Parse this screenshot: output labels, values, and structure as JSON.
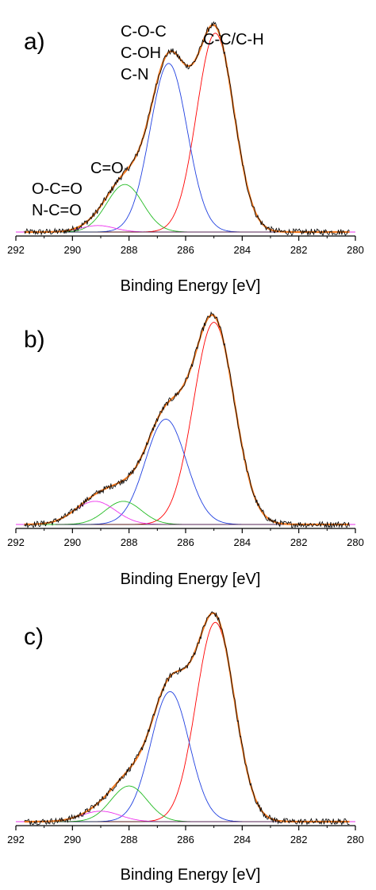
{
  "chart_data": [
    {
      "type": "line",
      "panel_label": "a)",
      "xlabel": "Binding Energy [eV]",
      "ylabel": "",
      "xlim": [
        292,
        280
      ],
      "x_reversed": true,
      "x_ticks": [
        292,
        290,
        288,
        286,
        284,
        282,
        280
      ],
      "grid": false,
      "annotations": [
        {
          "lines": [
            "C-O-C",
            "C-OH",
            "C-N"
          ],
          "x": 287.6
        },
        {
          "lines": [
            "C-C/C-H"
          ],
          "x": 284.6
        },
        {
          "lines": [
            "C=O"
          ],
          "x": 288.8
        },
        {
          "lines": [
            "O-C=O",
            "N-C=O"
          ],
          "x": 290.5
        }
      ],
      "series": [
        {
          "color": "#ff0000",
          "peak": {
            "center": 284.95,
            "height": 0.92,
            "fwhm": 1.55
          }
        },
        {
          "color": "#2040e0",
          "peak": {
            "center": 286.6,
            "height": 0.78,
            "fwhm": 1.55
          }
        },
        {
          "color": "#22bb22",
          "peak": {
            "center": 288.15,
            "height": 0.22,
            "fwhm": 1.5
          }
        },
        {
          "color": "#ee33ee",
          "peak": {
            "center": 289.1,
            "height": 0.03,
            "fwhm": 1.4
          }
        },
        {
          "color": "#f07820",
          "role": "envelope"
        },
        {
          "color": "#000000",
          "role": "experimental"
        }
      ]
    },
    {
      "type": "line",
      "panel_label": "b)",
      "xlabel": "Binding Energy [eV]",
      "ylabel": "",
      "xlim": [
        292,
        280
      ],
      "x_reversed": true,
      "x_ticks": [
        292,
        290,
        288,
        286,
        284,
        282,
        280
      ],
      "grid": false,
      "annotations": [],
      "series": [
        {
          "color": "#ff0000",
          "peak": {
            "center": 285.0,
            "height": 0.96,
            "fwhm": 1.7
          }
        },
        {
          "color": "#2040e0",
          "peak": {
            "center": 286.7,
            "height": 0.5,
            "fwhm": 1.7
          }
        },
        {
          "color": "#22bb22",
          "peak": {
            "center": 288.2,
            "height": 0.11,
            "fwhm": 1.5
          }
        },
        {
          "color": "#ee33ee",
          "peak": {
            "center": 289.2,
            "height": 0.11,
            "fwhm": 1.7
          }
        },
        {
          "color": "#f07820",
          "role": "envelope"
        },
        {
          "color": "#000000",
          "role": "experimental"
        }
      ]
    },
    {
      "type": "line",
      "panel_label": "c)",
      "xlabel": "Binding Energy [eV]",
      "ylabel": "",
      "xlim": [
        292,
        280
      ],
      "x_reversed": true,
      "x_ticks": [
        292,
        290,
        288,
        286,
        284,
        282,
        280
      ],
      "grid": false,
      "annotations": [],
      "series": [
        {
          "color": "#ff0000",
          "peak": {
            "center": 284.95,
            "height": 0.95,
            "fwhm": 1.6
          }
        },
        {
          "color": "#2040e0",
          "peak": {
            "center": 286.55,
            "height": 0.62,
            "fwhm": 1.6
          }
        },
        {
          "color": "#22bb22",
          "peak": {
            "center": 288.0,
            "height": 0.17,
            "fwhm": 1.5
          }
        },
        {
          "color": "#ee33ee",
          "peak": {
            "center": 289.0,
            "height": 0.05,
            "fwhm": 1.6
          }
        },
        {
          "color": "#f07820",
          "role": "envelope"
        },
        {
          "color": "#000000",
          "role": "experimental"
        }
      ]
    }
  ]
}
